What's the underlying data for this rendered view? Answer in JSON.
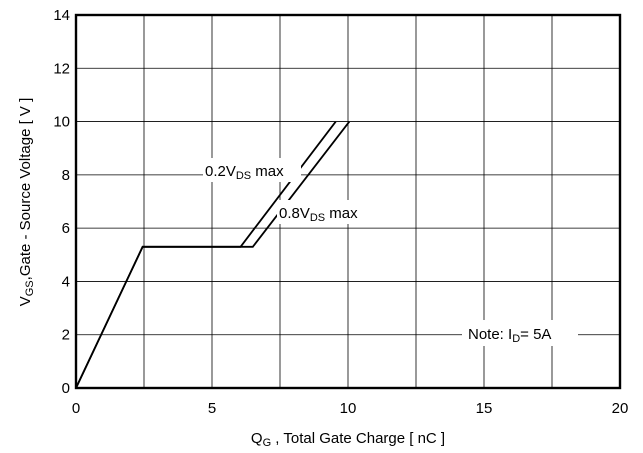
{
  "chart_data": {
    "type": "line",
    "title": "",
    "xlabel": {
      "main": "Q",
      "sub": "G",
      "rest": " , Total Gate Charge [ nC ]"
    },
    "ylabel": {
      "main": "V",
      "sub": "GS",
      "rest": ",Gate - Source Voltage [ V ]"
    },
    "xlim": [
      0,
      20
    ],
    "ylim": [
      0,
      14
    ],
    "x_ticks": [
      "0",
      "5",
      "10",
      "15",
      "20"
    ],
    "y_ticks": [
      "0",
      "2",
      "4",
      "6",
      "8",
      "10",
      "12",
      "14"
    ],
    "grid": true,
    "series": [
      {
        "name": {
          "main": "0.2V",
          "sub": "DS",
          "rest": " max"
        },
        "x": [
          0,
          2.45,
          6.05,
          9.55
        ],
        "y": [
          0,
          5.3,
          5.3,
          10
        ]
      },
      {
        "name": {
          "main": "0.8V",
          "sub": "DS",
          "rest": " max"
        },
        "x": [
          0,
          2.45,
          6.5,
          10.05
        ],
        "y": [
          0,
          5.3,
          5.3,
          10
        ]
      }
    ],
    "annotation": {
      "main": "Note: I",
      "sub": "D",
      "rest": "=  5A"
    }
  }
}
